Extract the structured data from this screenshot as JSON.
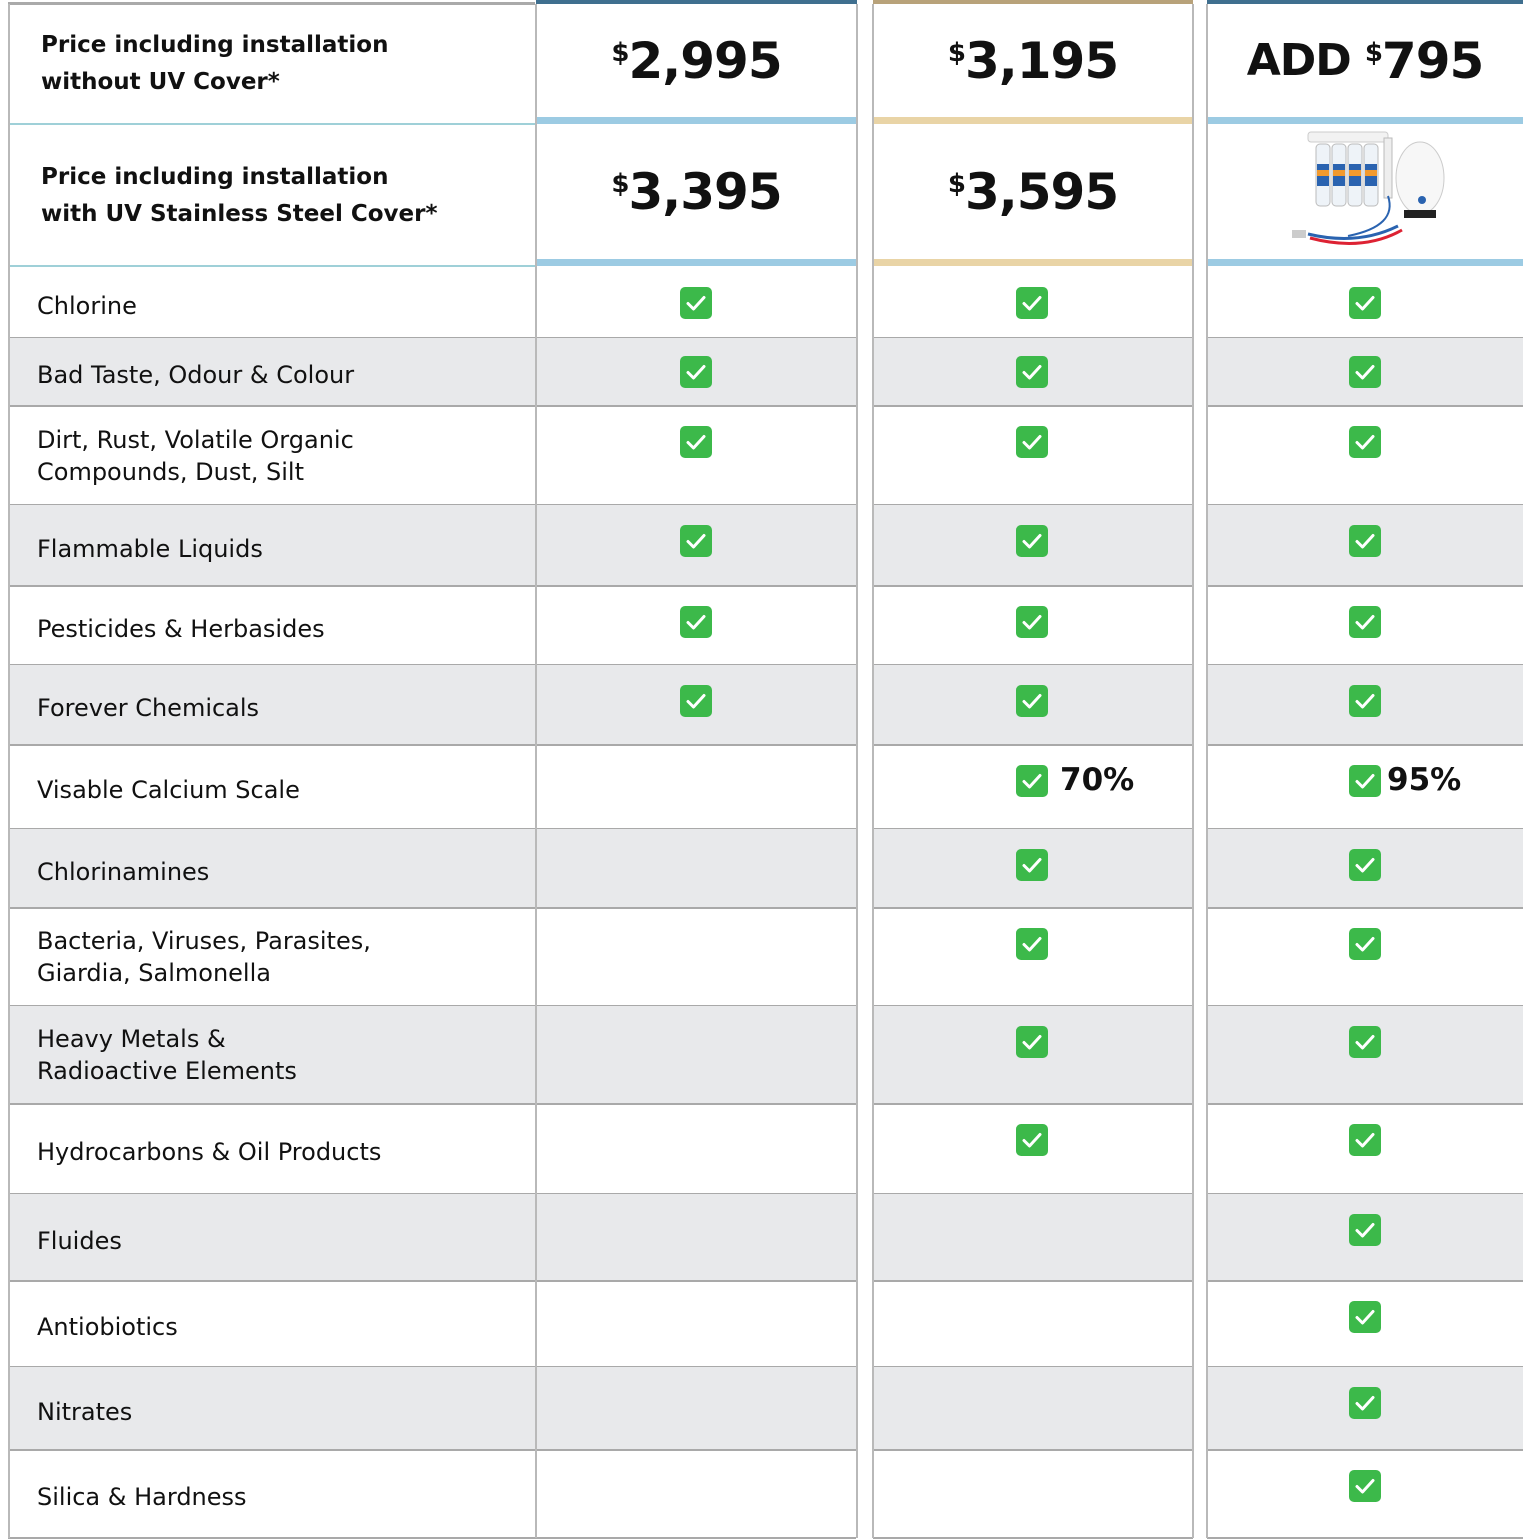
{
  "header": {
    "rows": [
      {
        "label": [
          "Price including installation",
          "without UV Cover*"
        ],
        "cells": [
          {
            "currency": "$",
            "amount": "2,995"
          },
          {
            "currency": "$",
            "amount": "3,195"
          },
          {
            "prefix": "ADD",
            "currency": "$",
            "amount": "795"
          }
        ]
      },
      {
        "label": [
          "Price including installation",
          "with UV Stainless Steel Cover*"
        ],
        "cells": [
          {
            "currency": "$",
            "amount": "3,395"
          },
          {
            "currency": "$",
            "amount": "3,595"
          }
        ]
      }
    ]
  },
  "features": {
    "rows": [
      {
        "label": [
          "Chlorine"
        ],
        "cells": [
          {
            "check": true
          },
          {
            "check": true
          },
          {
            "check": true
          }
        ]
      },
      {
        "label": [
          "Bad Taste, Odour & Colour"
        ],
        "cells": [
          {
            "check": true
          },
          {
            "check": true
          },
          {
            "check": true
          }
        ]
      },
      {
        "label": [
          "Dirt, Rust, Volatile Organic",
          "Compounds, Dust, Silt"
        ],
        "cells": [
          {
            "check": true
          },
          {
            "check": true
          },
          {
            "check": true
          }
        ]
      },
      {
        "label": [
          "Flammable Liquids"
        ],
        "cells": [
          {
            "check": true
          },
          {
            "check": true
          },
          {
            "check": true
          }
        ]
      },
      {
        "label": [
          "Pesticides & Herbasides"
        ],
        "cells": [
          {
            "check": true
          },
          {
            "check": true
          },
          {
            "check": true
          }
        ]
      },
      {
        "label": [
          "Forever Chemicals"
        ],
        "cells": [
          {
            "check": true
          },
          {
            "check": true
          },
          {
            "check": true
          }
        ]
      },
      {
        "label": [
          "Visable Calcium Scale"
        ],
        "cells": [
          {
            "check": false
          },
          {
            "check": true,
            "note": "70%"
          },
          {
            "check": true,
            "note": "95%"
          }
        ]
      },
      {
        "label": [
          "Chlorinamines"
        ],
        "cells": [
          {
            "check": false
          },
          {
            "check": true
          },
          {
            "check": true
          }
        ]
      },
      {
        "label": [
          "Bacteria, Viruses, Parasites,",
          "Giardia, Salmonella"
        ],
        "cells": [
          {
            "check": false
          },
          {
            "check": true
          },
          {
            "check": true
          }
        ]
      },
      {
        "label": [
          "Heavy Metals &",
          "Radioactive Elements"
        ],
        "cells": [
          {
            "check": false
          },
          {
            "check": true
          },
          {
            "check": true
          }
        ]
      },
      {
        "label": [
          "Hydrocarbons & Oil Products"
        ],
        "cells": [
          {
            "check": false
          },
          {
            "check": true
          },
          {
            "check": true
          }
        ]
      },
      {
        "label": [
          "Fluides"
        ],
        "cells": [
          {
            "check": false
          },
          {
            "check": false
          },
          {
            "check": true
          }
        ]
      },
      {
        "label": [
          "Antiobiotics"
        ],
        "cells": [
          {
            "check": false
          },
          {
            "check": false
          },
          {
            "check": true
          }
        ]
      },
      {
        "label": [
          "Nitrates"
        ],
        "cells": [
          {
            "check": false
          },
          {
            "check": false
          },
          {
            "check": true
          }
        ]
      },
      {
        "label": [
          "Silica & Hardness"
        ],
        "cells": [
          {
            "check": false
          },
          {
            "check": false
          },
          {
            "check": true
          }
        ]
      }
    ]
  }
}
